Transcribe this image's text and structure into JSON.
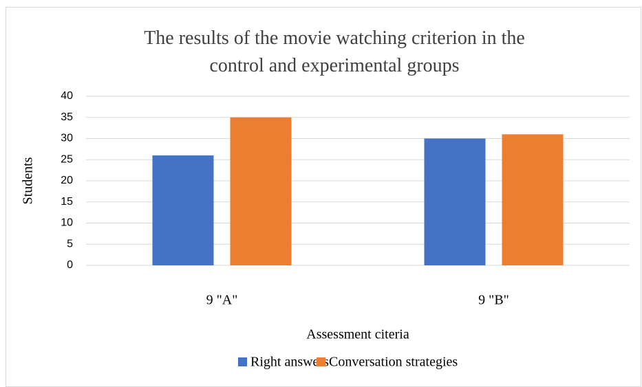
{
  "chart_data": {
    "type": "bar",
    "title": "The results of the movie watching criterion in the control and experimental groups",
    "x_label": "Assessment citeria",
    "y_label": "Students",
    "categories": [
      "9 \"A\"",
      "9 \"B\""
    ],
    "series": [
      {
        "name": "Right answers",
        "color": "#4472c4",
        "values": [
          26,
          30
        ]
      },
      {
        "name": "Conversation strategies",
        "color": "#ed7d31",
        "values": [
          35,
          31
        ]
      }
    ],
    "ylim": [
      0,
      40
    ],
    "yticks": [
      0,
      5,
      10,
      15,
      20,
      25,
      30,
      35,
      40
    ],
    "grid": true,
    "legend": "bottom"
  }
}
